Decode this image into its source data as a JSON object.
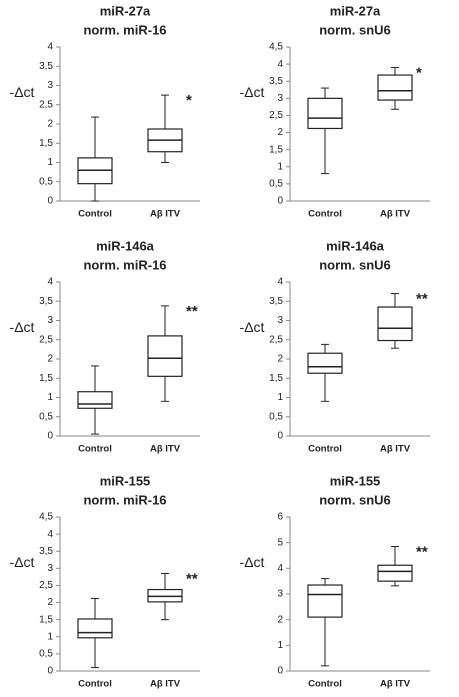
{
  "chart_data": [
    {
      "type": "box",
      "title": "miR-27a",
      "subtitle": "norm. miR-16",
      "ylabel": "-Δct",
      "categories": [
        "Control",
        "Aβ ITV"
      ],
      "boxes": [
        {
          "min": 0,
          "q1": 0.45,
          "median": 0.8,
          "q3": 1.12,
          "max": 2.18
        },
        {
          "min": 1.0,
          "q1": 1.28,
          "median": 1.58,
          "q3": 1.87,
          "max": 2.75
        }
      ],
      "annotations": [
        null,
        "*"
      ],
      "ylim": [
        0,
        4
      ],
      "yticks": [
        0,
        {
          "value": 0.5,
          "label": "0,5"
        },
        1,
        {
          "value": 1.5,
          "label": "1,5"
        },
        2,
        {
          "value": 2.5,
          "label": "2,5"
        },
        3,
        {
          "value": 3.5,
          "label": "3,5"
        },
        4
      ]
    },
    {
      "type": "box",
      "title": "miR-27a",
      "subtitle": "norm. snU6",
      "ylabel": "-Δct",
      "categories": [
        "Control",
        "Aβ ITV"
      ],
      "boxes": [
        {
          "min": 0.8,
          "q1": 2.12,
          "median": 2.42,
          "q3": 3.0,
          "max": 3.3
        },
        {
          "min": 2.68,
          "q1": 2.95,
          "median": 3.22,
          "q3": 3.68,
          "max": 3.9
        }
      ],
      "annotations": [
        null,
        "*"
      ],
      "ylim": [
        0,
        4.5
      ],
      "yticks": [
        0,
        {
          "value": 0.5,
          "label": "0,5"
        },
        1,
        {
          "value": 1.5,
          "label": "1,5"
        },
        2,
        {
          "value": 2.5,
          "label": "2,5"
        },
        3,
        {
          "value": 3.5,
          "label": "3,5"
        },
        4,
        {
          "value": 4.5,
          "label": "4,5"
        }
      ]
    },
    {
      "type": "box",
      "title": "miR-146a",
      "subtitle": "norm. miR-16",
      "ylabel": "-Δct",
      "categories": [
        "Control",
        "Aβ ITV"
      ],
      "boxes": [
        {
          "min": 0.05,
          "q1": 0.72,
          "median": 0.83,
          "q3": 1.15,
          "max": 1.82
        },
        {
          "min": 0.9,
          "q1": 1.55,
          "median": 2.02,
          "q3": 2.6,
          "max": 3.38
        }
      ],
      "annotations": [
        null,
        "**"
      ],
      "ylim": [
        0,
        4
      ],
      "yticks": [
        0,
        {
          "value": 0.5,
          "label": "0,5"
        },
        1,
        {
          "value": 1.5,
          "label": "1,5"
        },
        2,
        {
          "value": 2.5,
          "label": "2,5"
        },
        3,
        {
          "value": 3.5,
          "label": "3,5"
        },
        4
      ]
    },
    {
      "type": "box",
      "title": "miR-146a",
      "subtitle": "norm. snU6",
      "ylabel": "-Δct",
      "categories": [
        "Control",
        "Aβ ITV"
      ],
      "boxes": [
        {
          "min": 0.9,
          "q1": 1.63,
          "median": 1.8,
          "q3": 2.15,
          "max": 2.38
        },
        {
          "min": 2.28,
          "q1": 2.48,
          "median": 2.8,
          "q3": 3.35,
          "max": 3.7
        }
      ],
      "annotations": [
        null,
        "**"
      ],
      "ylim": [
        0,
        4
      ],
      "yticks": [
        0,
        {
          "value": 0.5,
          "label": "0,5"
        },
        1,
        {
          "value": 1.5,
          "label": "1,5"
        },
        2,
        {
          "value": 2.5,
          "label": "2,5"
        },
        3,
        {
          "value": 3.5,
          "label": "3,5"
        },
        4
      ]
    },
    {
      "type": "box",
      "title": "miR-155",
      "subtitle": "norm. miR-16",
      "ylabel": "-Δct",
      "categories": [
        "Control",
        "Aβ ITV"
      ],
      "boxes": [
        {
          "min": 0.1,
          "q1": 0.97,
          "median": 1.12,
          "q3": 1.52,
          "max": 2.12
        },
        {
          "min": 1.5,
          "q1": 2.02,
          "median": 2.18,
          "q3": 2.38,
          "max": 2.85
        }
      ],
      "annotations": [
        null,
        "**"
      ],
      "ylim": [
        0,
        4.5
      ],
      "yticks": [
        0,
        {
          "value": 0.5,
          "label": "0,5"
        },
        1,
        {
          "value": 1.5,
          "label": "1,5"
        },
        2,
        {
          "value": 2.5,
          "label": "2,5"
        },
        3,
        {
          "value": 3.5,
          "label": "3,5"
        },
        4,
        {
          "value": 4.5,
          "label": "4,5"
        }
      ]
    },
    {
      "type": "box",
      "title": "miR-155",
      "subtitle": "norm. snU6",
      "ylabel": "-Δct",
      "categories": [
        "Control",
        "Aβ ITV"
      ],
      "boxes": [
        {
          "min": 0.2,
          "q1": 2.1,
          "median": 2.98,
          "q3": 3.35,
          "max": 3.6
        },
        {
          "min": 3.32,
          "q1": 3.5,
          "median": 3.88,
          "q3": 4.12,
          "max": 4.85
        }
      ],
      "annotations": [
        null,
        "**"
      ],
      "ylim": [
        0,
        6
      ],
      "yticks": [
        0,
        1,
        2,
        3,
        4,
        5,
        6
      ]
    }
  ]
}
